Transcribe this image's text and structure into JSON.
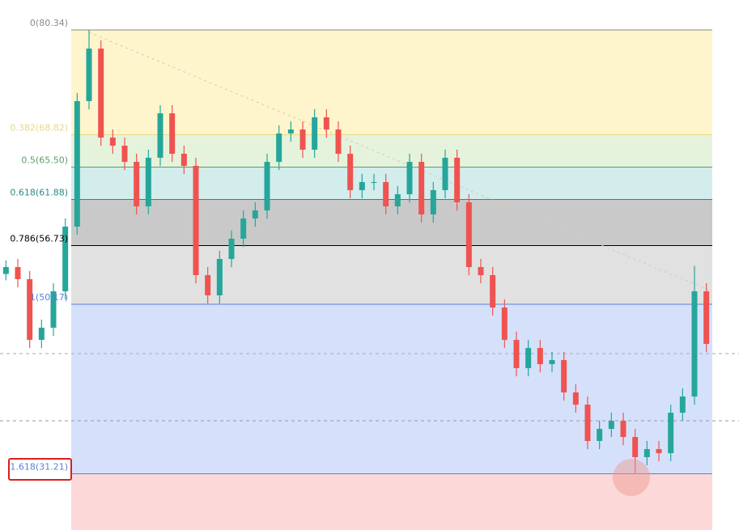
{
  "chart_data": {
    "type": "candlestick",
    "up_color": "#26a69a",
    "down_color": "#ef5350",
    "levels": [
      {
        "level": 0,
        "price": 80.34,
        "label": "0(80.34)",
        "color": "#8a8a8a",
        "fill": "#fff5cc"
      },
      {
        "level": 0.382,
        "price": 68.82,
        "label": "0.382(68.82)",
        "color": "#e8d88a",
        "fill": "#e6f3dc"
      },
      {
        "level": 0.5,
        "price": 65.5,
        "label": "0.5(65.50)",
        "color": "#5a9e6a",
        "fill": "#d3ecec"
      },
      {
        "level": 0.618,
        "price": 61.88,
        "label": "0.618(61.88)",
        "color": "#2a8a8a",
        "fill": "#c9c9c9"
      },
      {
        "level": 0.786,
        "price": 56.73,
        "label": "0.786(56.73)",
        "color": "#000000",
        "fill": "#e1e1e1"
      },
      {
        "level": 1,
        "price": 50.17,
        "label": "1(50.17)",
        "color": "#5b7fd6",
        "fill": "#d5e1fb"
      },
      {
        "level": 1.618,
        "price": 31.21,
        "label": "1.618(31.21)",
        "color": "#5b7fd6",
        "fill": "#fcd8d8"
      }
    ],
    "candles": [
      [
        53.5,
        55.0,
        52.8,
        54.26
      ],
      [
        54.26,
        55.16,
        52.03,
        52.93
      ],
      [
        52.93,
        53.83,
        45.35,
        46.25
      ],
      [
        46.25,
        48.49,
        45.35,
        47.59
      ],
      [
        47.59,
        52.49,
        46.69,
        51.59
      ],
      [
        51.59,
        59.61,
        50.69,
        58.71
      ],
      [
        58.71,
        73.41,
        57.81,
        72.51
      ],
      [
        72.51,
        80.34,
        71.61,
        78.29
      ],
      [
        78.29,
        79.19,
        67.6,
        68.5
      ],
      [
        68.5,
        69.4,
        66.71,
        67.61
      ],
      [
        67.61,
        68.51,
        64.93,
        65.83
      ],
      [
        65.83,
        66.73,
        60.04,
        60.94
      ],
      [
        60.94,
        67.18,
        60.04,
        66.28
      ],
      [
        66.28,
        72.07,
        65.38,
        71.17
      ],
      [
        71.17,
        72.07,
        65.82,
        66.72
      ],
      [
        66.72,
        67.62,
        64.49,
        65.39
      ],
      [
        65.39,
        66.29,
        52.47,
        53.37
      ],
      [
        53.37,
        54.27,
        50.25,
        51.15
      ],
      [
        51.15,
        56.05,
        50.25,
        55.15
      ],
      [
        55.15,
        58.28,
        54.25,
        57.38
      ],
      [
        57.38,
        60.5,
        56.48,
        59.6
      ],
      [
        59.6,
        61.39,
        58.7,
        60.49
      ],
      [
        60.49,
        66.73,
        59.59,
        65.83
      ],
      [
        65.83,
        69.85,
        64.93,
        68.95
      ],
      [
        68.95,
        70.29,
        68.05,
        69.39
      ],
      [
        69.39,
        70.29,
        66.27,
        67.17
      ],
      [
        67.17,
        71.63,
        66.27,
        70.73
      ],
      [
        70.73,
        71.63,
        68.49,
        69.39
      ],
      [
        69.39,
        70.29,
        65.82,
        66.72
      ],
      [
        66.72,
        67.62,
        61.82,
        62.72
      ],
      [
        62.72,
        64.51,
        61.82,
        63.61
      ],
      [
        63.61,
        64.51,
        62.71,
        63.61
      ],
      [
        63.61,
        64.51,
        60.04,
        60.94
      ],
      [
        60.94,
        63.17,
        60.04,
        62.27
      ],
      [
        62.27,
        66.73,
        61.37,
        65.83
      ],
      [
        65.83,
        66.73,
        59.15,
        60.05
      ],
      [
        60.05,
        63.62,
        59.15,
        62.72
      ],
      [
        62.72,
        67.18,
        61.82,
        66.28
      ],
      [
        66.28,
        67.18,
        60.48,
        61.38
      ],
      [
        61.38,
        62.28,
        53.36,
        54.26
      ],
      [
        54.26,
        55.16,
        52.47,
        53.37
      ],
      [
        53.37,
        54.27,
        48.91,
        49.81
      ],
      [
        49.81,
        50.71,
        45.35,
        46.25
      ],
      [
        46.25,
        47.15,
        42.24,
        43.14
      ],
      [
        43.14,
        46.26,
        42.24,
        45.36
      ],
      [
        45.36,
        46.26,
        42.68,
        43.58
      ],
      [
        43.58,
        44.93,
        42.68,
        44.03
      ],
      [
        44.03,
        44.93,
        39.57,
        40.47
      ],
      [
        40.47,
        41.37,
        38.23,
        39.13
      ],
      [
        39.13,
        40.03,
        34.23,
        35.13
      ],
      [
        35.13,
        37.36,
        34.23,
        36.46
      ],
      [
        36.46,
        38.25,
        35.56,
        37.35
      ],
      [
        37.35,
        38.25,
        34.67,
        35.57
      ],
      [
        35.57,
        36.47,
        31.6,
        33.35
      ],
      [
        33.35,
        35.14,
        32.45,
        34.24
      ],
      [
        34.24,
        35.14,
        32.89,
        33.79
      ],
      [
        33.79,
        39.14,
        32.89,
        38.24
      ],
      [
        38.24,
        40.92,
        37.34,
        40.02
      ],
      [
        40.02,
        54.4,
        39.12,
        51.59
      ],
      [
        51.59,
        52.49,
        44.91,
        45.81
      ]
    ]
  }
}
